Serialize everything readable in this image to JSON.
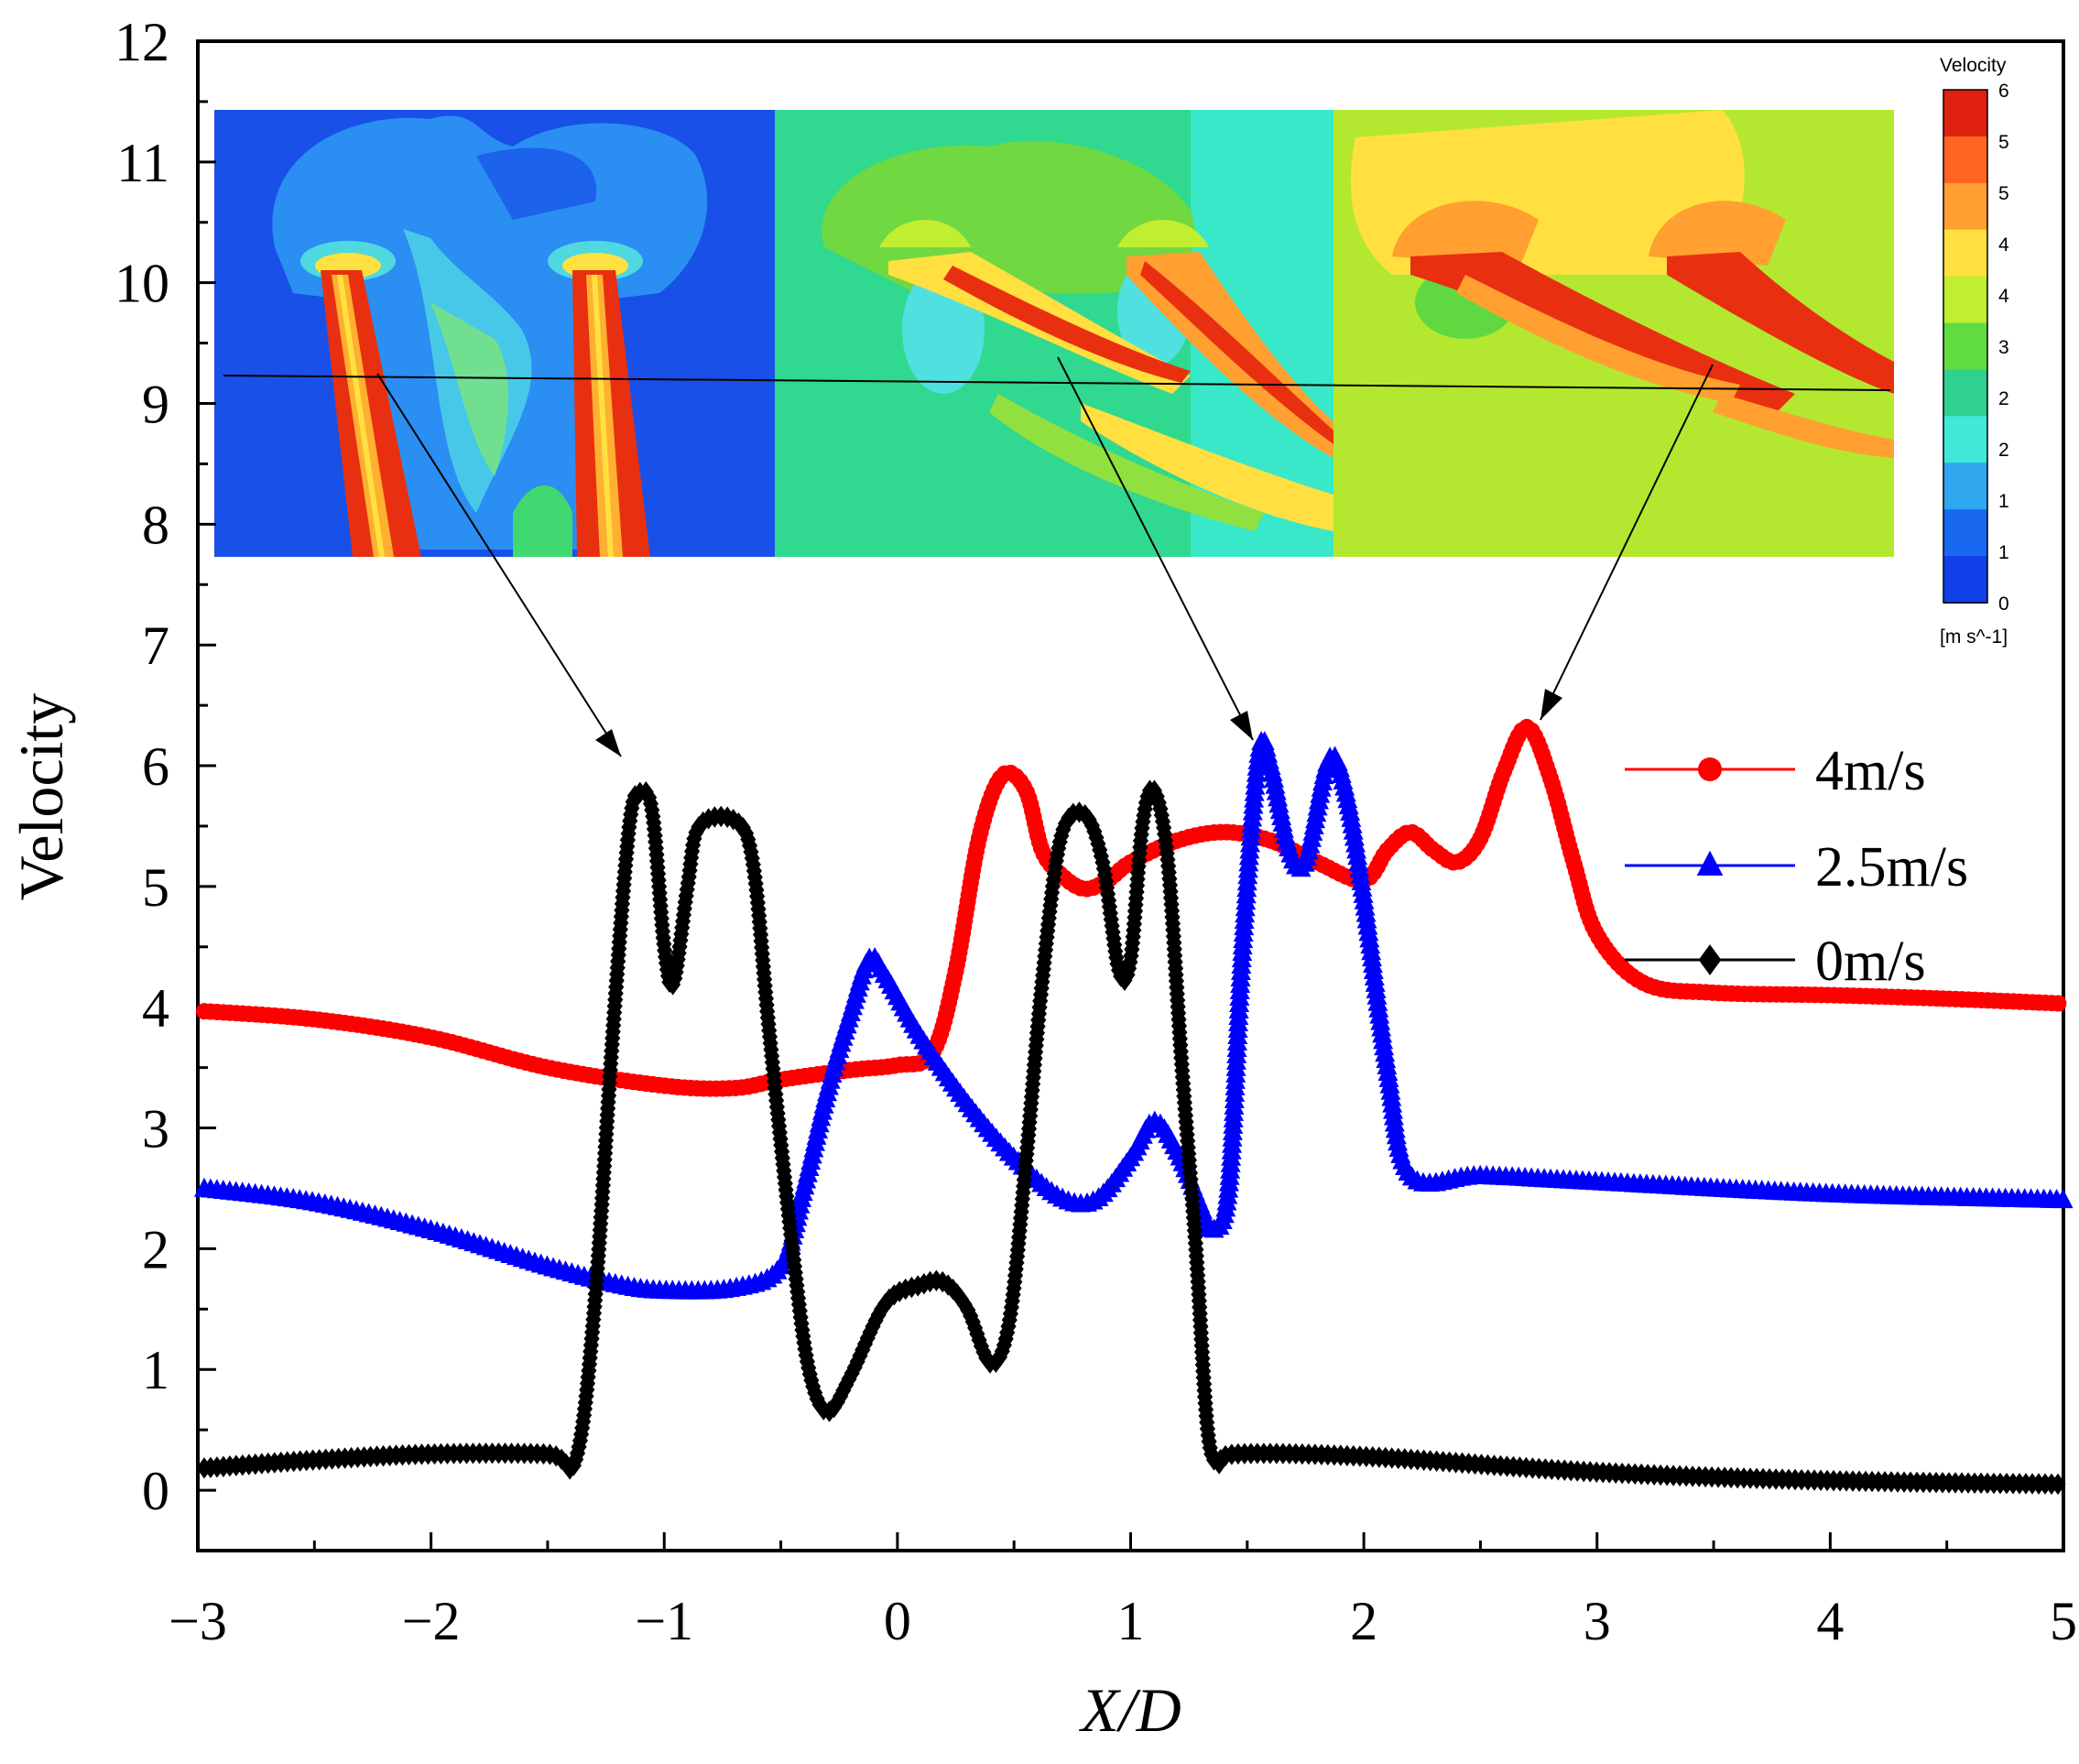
{
  "chart_data": {
    "type": "scatter",
    "title": "",
    "xlabel": "X/D",
    "ylabel": "Velocity",
    "xlim": [
      -3,
      5
    ],
    "ylim": [
      -0.5,
      12
    ],
    "x_ticks": [
      "−3",
      "−2",
      "−1",
      "0",
      "1",
      "2",
      "3",
      "4",
      "5"
    ],
    "y_ticks": [
      "0",
      "1",
      "2",
      "3",
      "4",
      "5",
      "6",
      "7",
      "8",
      "9",
      "10",
      "11",
      "12"
    ],
    "legend_position": "right",
    "series": [
      {
        "name": "4m/s",
        "color": "#ff0000",
        "marker": "circle",
        "points": [
          [
            -3,
            3.97
          ],
          [
            -2.5,
            3.9
          ],
          [
            -2,
            3.75
          ],
          [
            -1.5,
            3.5
          ],
          [
            -1,
            3.35
          ],
          [
            -0.7,
            3.33
          ],
          [
            -0.5,
            3.4
          ],
          [
            -0.2,
            3.48
          ],
          [
            0,
            3.52
          ],
          [
            0.15,
            3.62
          ],
          [
            0.25,
            4.3
          ],
          [
            0.35,
            5.4
          ],
          [
            0.45,
            5.92
          ],
          [
            0.55,
            5.8
          ],
          [
            0.62,
            5.3
          ],
          [
            0.7,
            5.1
          ],
          [
            0.8,
            4.98
          ],
          [
            0.9,
            5.05
          ],
          [
            1.0,
            5.2
          ],
          [
            1.2,
            5.38
          ],
          [
            1.4,
            5.45
          ],
          [
            1.6,
            5.38
          ],
          [
            1.8,
            5.2
          ],
          [
            2.0,
            5.05
          ],
          [
            2.1,
            5.3
          ],
          [
            2.2,
            5.45
          ],
          [
            2.3,
            5.3
          ],
          [
            2.4,
            5.2
          ],
          [
            2.5,
            5.4
          ],
          [
            2.6,
            5.95
          ],
          [
            2.7,
            6.32
          ],
          [
            2.8,
            5.9
          ],
          [
            2.9,
            5.2
          ],
          [
            3.0,
            4.6
          ],
          [
            3.2,
            4.2
          ],
          [
            3.5,
            4.12
          ],
          [
            4,
            4.1
          ],
          [
            4.5,
            4.07
          ],
          [
            5,
            4.03
          ]
        ]
      },
      {
        "name": "2.5m/s",
        "color": "#0000ff",
        "marker": "triangle",
        "points": [
          [
            -3,
            2.5
          ],
          [
            -2.5,
            2.38
          ],
          [
            -2,
            2.15
          ],
          [
            -1.5,
            1.85
          ],
          [
            -1.2,
            1.7
          ],
          [
            -1,
            1.65
          ],
          [
            -0.7,
            1.67
          ],
          [
            -0.5,
            1.85
          ],
          [
            -0.4,
            2.5
          ],
          [
            -0.3,
            3.3
          ],
          [
            -0.2,
            3.95
          ],
          [
            -0.12,
            4.4
          ],
          [
            -0.05,
            4.25
          ],
          [
            0.1,
            3.75
          ],
          [
            0.3,
            3.2
          ],
          [
            0.5,
            2.75
          ],
          [
            0.7,
            2.42
          ],
          [
            0.85,
            2.4
          ],
          [
            1.0,
            2.75
          ],
          [
            1.1,
            3.05
          ],
          [
            1.2,
            2.8
          ],
          [
            1.3,
            2.35
          ],
          [
            1.35,
            2.15
          ],
          [
            1.42,
            2.5
          ],
          [
            1.48,
            4.5
          ],
          [
            1.55,
            6.1
          ],
          [
            1.6,
            6.0
          ],
          [
            1.68,
            5.3
          ],
          [
            1.75,
            5.2
          ],
          [
            1.85,
            6.05
          ],
          [
            1.92,
            5.8
          ],
          [
            2.0,
            4.9
          ],
          [
            2.1,
            3.5
          ],
          [
            2.2,
            2.6
          ],
          [
            2.5,
            2.6
          ],
          [
            3,
            2.55
          ],
          [
            4,
            2.45
          ],
          [
            5,
            2.4
          ]
        ]
      },
      {
        "name": "0m/s",
        "color": "#000000",
        "marker": "diamond",
        "points": [
          [
            -3,
            0.18
          ],
          [
            -2.5,
            0.25
          ],
          [
            -2,
            0.3
          ],
          [
            -1.5,
            0.3
          ],
          [
            -1.38,
            0.25
          ],
          [
            -1.3,
            1.5
          ],
          [
            -1.22,
            3.8
          ],
          [
            -1.15,
            5.5
          ],
          [
            -1.1,
            5.78
          ],
          [
            -1.05,
            5.6
          ],
          [
            -1.0,
            4.5
          ],
          [
            -0.96,
            4.2
          ],
          [
            -0.9,
            5.0
          ],
          [
            -0.85,
            5.5
          ],
          [
            -0.7,
            5.55
          ],
          [
            -0.62,
            5.2
          ],
          [
            -0.55,
            3.8
          ],
          [
            -0.45,
            2.0
          ],
          [
            -0.38,
            1.0
          ],
          [
            -0.3,
            0.65
          ],
          [
            -0.2,
            0.95
          ],
          [
            -0.05,
            1.55
          ],
          [
            0.1,
            1.7
          ],
          [
            0.2,
            1.72
          ],
          [
            0.3,
            1.5
          ],
          [
            0.4,
            1.05
          ],
          [
            0.48,
            1.4
          ],
          [
            0.55,
            2.7
          ],
          [
            0.62,
            4.2
          ],
          [
            0.7,
            5.4
          ],
          [
            0.8,
            5.6
          ],
          [
            0.88,
            5.2
          ],
          [
            0.95,
            4.3
          ],
          [
            1.0,
            4.4
          ],
          [
            1.05,
            5.5
          ],
          [
            1.1,
            5.8
          ],
          [
            1.16,
            5.2
          ],
          [
            1.22,
            3.5
          ],
          [
            1.28,
            2.0
          ],
          [
            1.33,
            0.5
          ],
          [
            1.38,
            0.22
          ],
          [
            1.45,
            0.3
          ],
          [
            2,
            0.28
          ],
          [
            3,
            0.15
          ],
          [
            4,
            0.08
          ],
          [
            5,
            0.05
          ]
        ]
      }
    ],
    "inset": {
      "colorbar_title": "Velocity",
      "colorbar_labels": [
        "6",
        "5",
        "5",
        "4",
        "4",
        "3",
        "2",
        "2",
        "1",
        "1",
        "0"
      ],
      "colorbar_unit": "[m s^-1]",
      "colorbar_colors": [
        "#e02010",
        "#ff6420",
        "#ffa030",
        "#ffe040",
        "#c0ee30",
        "#60dc40",
        "#30d090",
        "#40e8d8",
        "#30a8f0",
        "#1868f0",
        "#1040e8"
      ]
    }
  }
}
